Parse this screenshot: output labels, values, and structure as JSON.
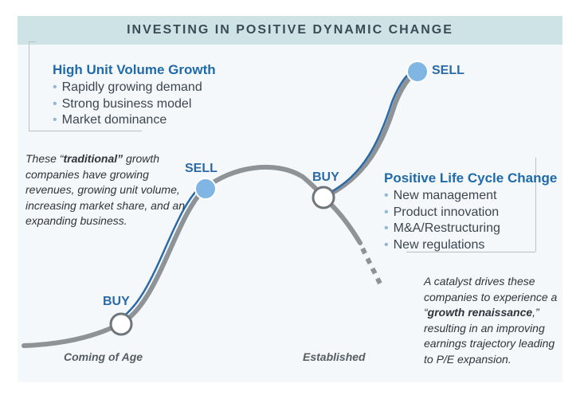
{
  "title": "INVESTING IN POSITIVE DYNAMIC CHANGE",
  "left_box": {
    "title": "High Unit Volume Growth",
    "items": [
      "Rapidly growing demand",
      "Strong business model",
      "Market dominance"
    ]
  },
  "left_note": {
    "part1": "These “",
    "bold": "traditional”",
    "part2": " growth companies have growing revenues, growing unit volume, increasing market share, and an expanding business."
  },
  "right_box": {
    "title": "Positive Life Cycle Change",
    "items": [
      "New management",
      "Product innovation",
      "M&A/Restructuring",
      "New regulations"
    ]
  },
  "right_note": {
    "part1": "A catalyst drives these companies to experience a “",
    "bold": "growth renaissance",
    "part2": ",” resulting in an improving earnings trajectory leading to P/E expansion."
  },
  "points": {
    "buy1": "BUY",
    "sell1": "SELL",
    "buy2": "BUY",
    "sell2": "SELL"
  },
  "stages": {
    "stage1": "Coming of Age",
    "stage2": "Established"
  },
  "colors": {
    "header_bg": "#cde3e6",
    "accent_blue": "#2a6aa6",
    "sell_dot": "#7fb6e3",
    "curve_gray": "#8e9398"
  }
}
